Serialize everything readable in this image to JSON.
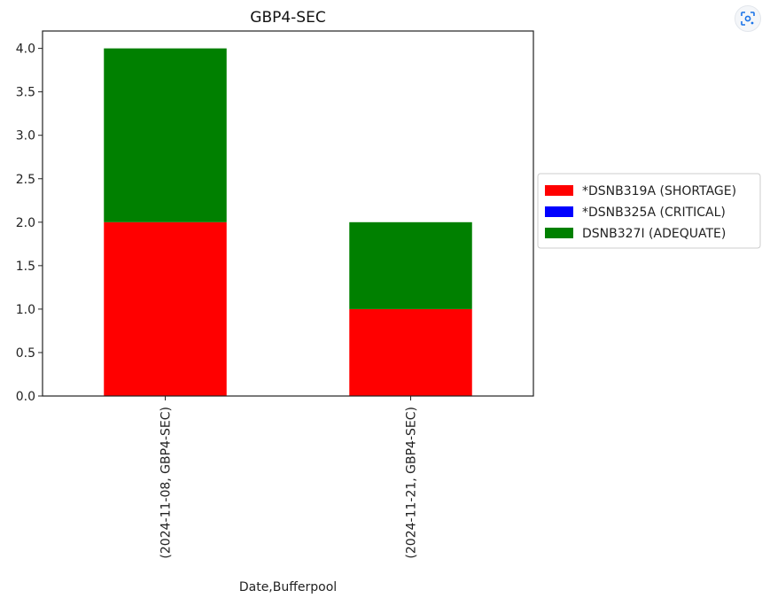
{
  "chart_data": {
    "type": "bar",
    "stacked": true,
    "title": "GBP4-SEC",
    "xlabel": "Date,Bufferpool",
    "ylabel": "",
    "categories": [
      "(2024-11-08, GBP4-SEC)",
      "(2024-11-21, GBP4-SEC)"
    ],
    "series": [
      {
        "name": "*DSNB319A (SHORTAGE)",
        "color": "#ff0000",
        "values": [
          2.0,
          1.0
        ]
      },
      {
        "name": "*DSNB325A (CRITICAL)",
        "color": "#0000ff",
        "values": [
          0.0,
          0.0
        ]
      },
      {
        "name": "DSNB327I (ADEQUATE)",
        "color": "#008000",
        "values": [
          2.0,
          1.0
        ]
      }
    ],
    "ylim": [
      0,
      4.2
    ],
    "yticks": [
      "0.0",
      "0.5",
      "1.0",
      "1.5",
      "2.0",
      "2.5",
      "3.0",
      "3.5",
      "4.0"
    ],
    "grid": false,
    "legend_position": "outside-right"
  },
  "toolbar": {
    "lens_icon": "google-lens-icon"
  }
}
